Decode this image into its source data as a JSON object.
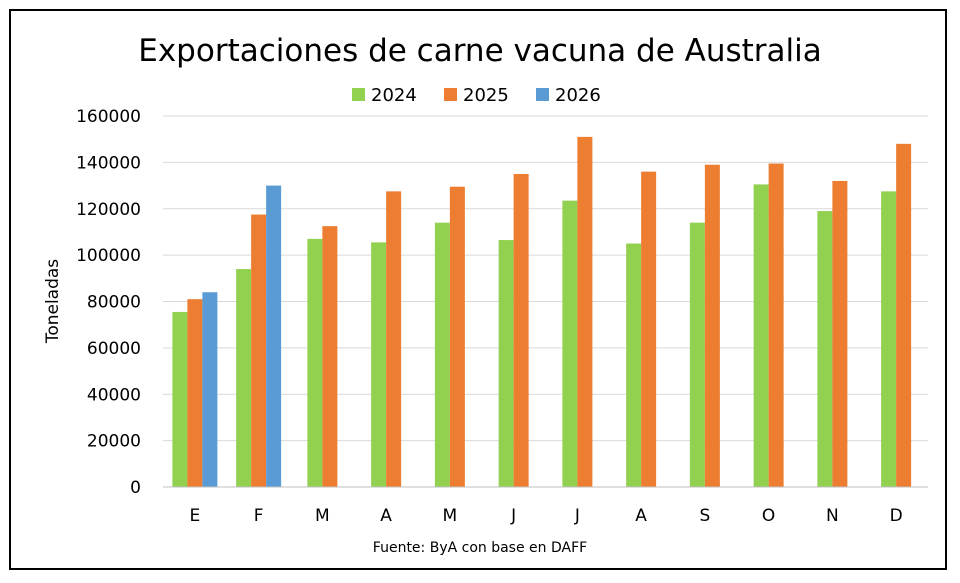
{
  "chart_data": {
    "type": "bar",
    "title": "Exportaciones de carne vacuna de Australia",
    "xlabel": "",
    "ylabel": "Toneladas",
    "source": "Fuente: ByA con base en DAFF",
    "categories": [
      "E",
      "F",
      "M",
      "A",
      "M",
      "J",
      "J",
      "A",
      "S",
      "O",
      "N",
      "D"
    ],
    "ylim": [
      0,
      160000
    ],
    "yticks": [
      0,
      20000,
      40000,
      60000,
      80000,
      100000,
      120000,
      140000,
      160000
    ],
    "grid": true,
    "legend_position": "top-center",
    "series": [
      {
        "name": "2024",
        "color": "#92d050",
        "values": [
          75500,
          94000,
          107000,
          105500,
          114000,
          106500,
          123500,
          105000,
          114000,
          130500,
          119000,
          127500
        ]
      },
      {
        "name": "2025",
        "color": "#ed7d31",
        "values": [
          81000,
          117500,
          112500,
          127500,
          129500,
          135000,
          151000,
          136000,
          139000,
          139500,
          132000,
          148000
        ]
      },
      {
        "name": "2026",
        "color": "#5b9bd5",
        "values": [
          84000,
          130000,
          null,
          null,
          null,
          null,
          null,
          null,
          null,
          null,
          null,
          null
        ]
      }
    ]
  }
}
